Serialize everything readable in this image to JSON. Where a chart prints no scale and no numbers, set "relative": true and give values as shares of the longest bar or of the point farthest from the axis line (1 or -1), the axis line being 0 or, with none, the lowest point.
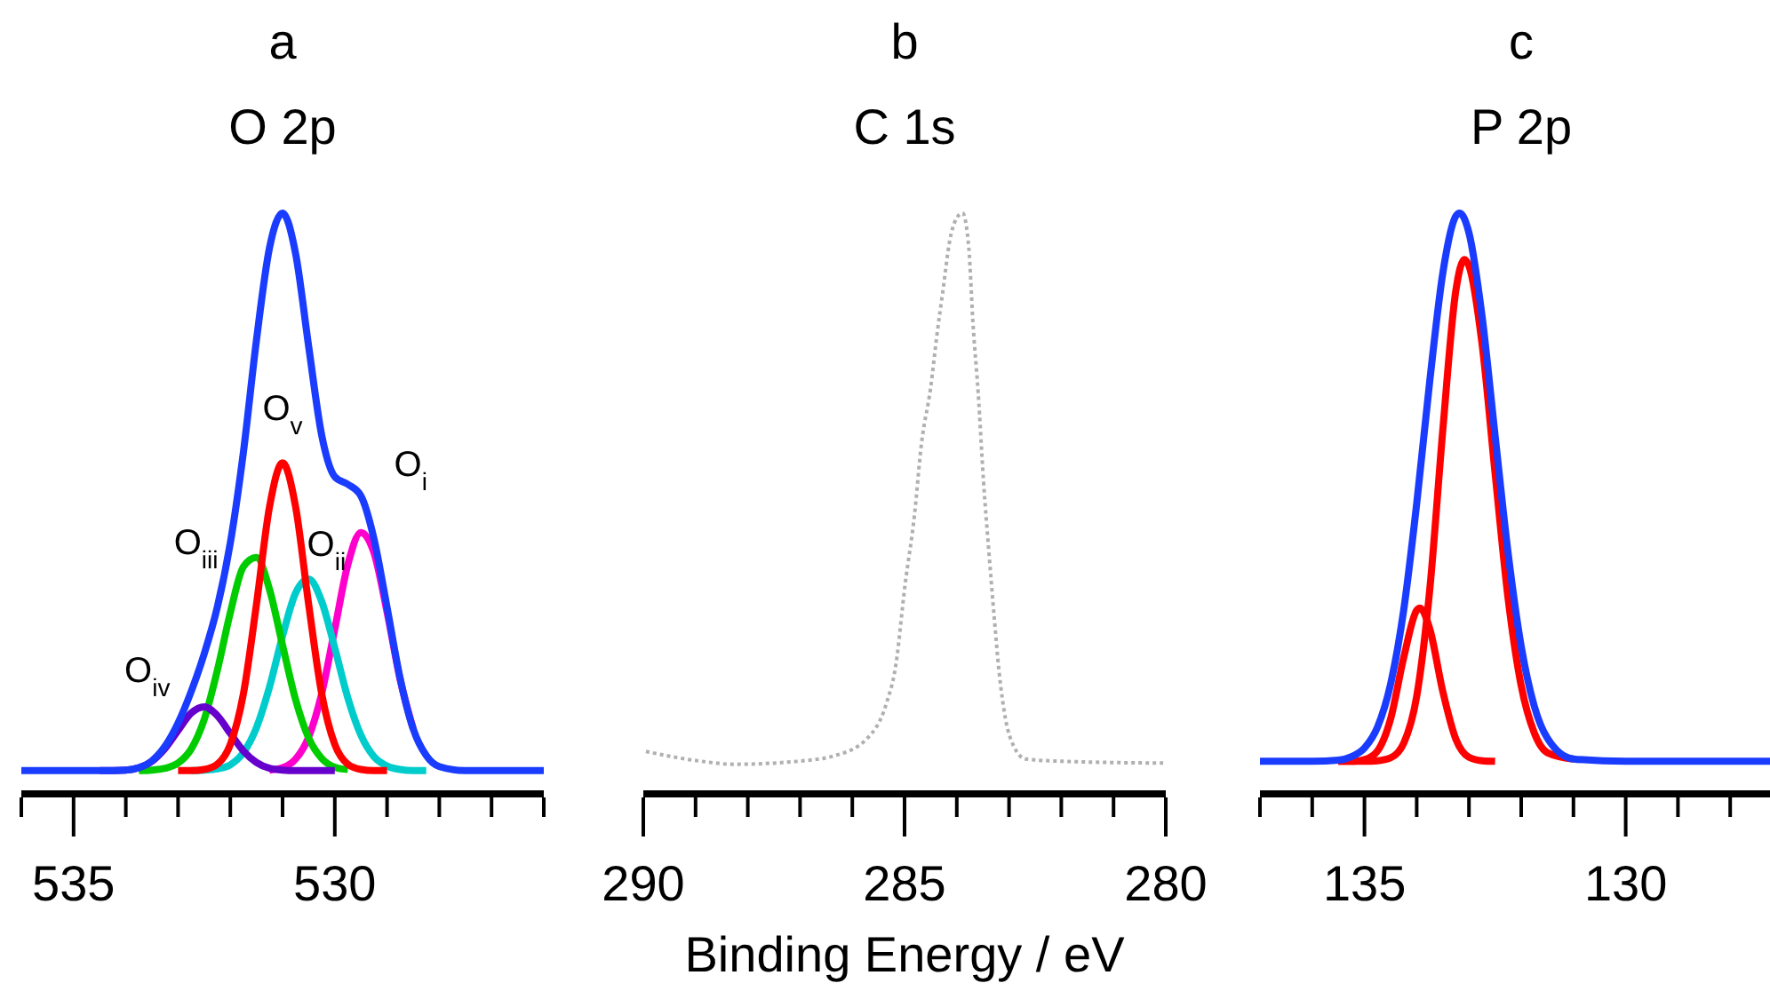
{
  "chart_data": [
    {
      "type": "line",
      "title": "a",
      "subtitle": "O 2p",
      "relative": true,
      "tick_labels": "x",
      "xlim": [
        536,
        526
      ],
      "xticks": [
        {
          "value": 536,
          "label": null
        },
        535,
        {
          "value": 534,
          "label": null
        },
        {
          "value": 533,
          "label": null
        },
        {
          "value": 532,
          "label": null
        },
        {
          "value": 531,
          "label": null
        },
        530,
        {
          "value": 529,
          "label": null
        },
        {
          "value": 528,
          "label": null
        },
        {
          "value": 527,
          "label": null
        },
        {
          "value": 526,
          "label": null
        }
      ],
      "x": [
        536,
        535,
        534.5,
        534,
        533.75,
        533.5,
        533.25,
        533,
        532.75,
        532.5,
        532.25,
        532,
        531.75,
        531.5,
        531.25,
        531,
        530.75,
        530.5,
        530.25,
        530,
        529.75,
        529.5,
        529.25,
        529,
        528.75,
        528.5,
        528.25,
        528,
        527.5,
        527,
        526
      ],
      "series": [
        {
          "name": "O$_{i}$",
          "color": "#ff00cc",
          "values": [
            null,
            null,
            null,
            null,
            null,
            null,
            null,
            null,
            null,
            null,
            null,
            null,
            null,
            null,
            0.041,
            0.045,
            0.06,
            0.098,
            0.173,
            0.284,
            0.395,
            0.45,
            0.415,
            0.313,
            0.197,
            0.112,
            null,
            null,
            null,
            null,
            null
          ]
        },
        {
          "name": "O$_{ii}$",
          "color": "#00cccc",
          "values": [
            null,
            null,
            null,
            null,
            null,
            null,
            null,
            null,
            0.04,
            0.041,
            0.043,
            0.05,
            0.071,
            0.114,
            0.184,
            0.272,
            0.346,
            0.37,
            0.331,
            0.251,
            0.165,
            0.101,
            0.064,
            0.048,
            0.042,
            0.04,
            0.04,
            null,
            null,
            null,
            null
          ]
        },
        {
          "name": "O$_{iii}$",
          "color": "#00cc00",
          "values": [
            null,
            null,
            null,
            null,
            0.04,
            0.041,
            0.044,
            0.053,
            0.077,
            0.128,
            0.212,
            0.312,
            0.391,
            0.407,
            0.352,
            0.256,
            0.162,
            0.096,
            0.061,
            0.046,
            0.042,
            null,
            null,
            null,
            null,
            null,
            null,
            null,
            null,
            null,
            null
          ]
        },
        {
          "name": "O$_{iv}$",
          "color": "#6600cc",
          "values": [
            null,
            null,
            0.04,
            0.041,
            0.045,
            0.056,
            0.078,
            0.109,
            0.139,
            0.15,
            0.135,
            0.104,
            0.074,
            0.054,
            0.044,
            0.041,
            0.04,
            0.04,
            0.04,
            0.04,
            null,
            null,
            null,
            null,
            null,
            null,
            null,
            null,
            null,
            null,
            null
          ]
        },
        {
          "name": "O$_{v}$",
          "color": "#ff0000",
          "values": [
            null,
            null,
            null,
            null,
            null,
            null,
            null,
            0.04,
            0.04,
            0.042,
            0.051,
            0.085,
            0.172,
            0.326,
            0.494,
            0.57,
            0.494,
            0.326,
            0.172,
            0.085,
            0.051,
            0.042,
            0.04,
            0.04,
            null,
            null,
            null,
            null,
            null,
            null,
            null
          ]
        },
        {
          "color": "#1a3cff",
          "values": [
            0.04,
            0.04,
            0.04,
            0.041,
            0.045,
            0.057,
            0.082,
            0.122,
            0.176,
            0.241,
            0.321,
            0.432,
            0.588,
            0.781,
            0.94,
            1,
            0.93,
            0.77,
            0.617,
            0.546,
            0.533,
            0.513,
            0.439,
            0.321,
            0.199,
            0.112,
            0.066,
            0.047,
            0.04,
            0.04,
            0.04
          ]
        }
      ]
    },
    {
      "type": "line",
      "title": "b",
      "subtitle": "C 1s",
      "xlabel": "Binding Energy / eV",
      "relative": true,
      "tick_labels": "x",
      "xlim": [
        290,
        280
      ],
      "xticks": [
        290,
        {
          "value": 289,
          "label": null
        },
        {
          "value": 288,
          "label": null
        },
        {
          "value": 287,
          "label": null
        },
        {
          "value": 286,
          "label": null
        },
        285,
        {
          "value": 284,
          "label": null
        },
        {
          "value": 283,
          "label": null
        },
        {
          "value": 282,
          "label": null
        },
        {
          "value": 281,
          "label": null
        },
        280
      ],
      "x": [
        289.95,
        288.88,
        288.27,
        287.06,
        286.33,
        285.72,
        285.35,
        285.17,
        284.99,
        284.81,
        284.68,
        284.5,
        284.38,
        284.26,
        284.14,
        284.01,
        283.89,
        283.77,
        283.69,
        283.59,
        283.49,
        283.38,
        283.28,
        283.19,
        283.07,
        282.92,
        282.68,
        281.95,
        280.05
      ],
      "series": [
        {
          "color": "#b0b0b0",
          "line_style": "dotted",
          "values": [
            0.073,
            0.056,
            0.051,
            0.056,
            0.066,
            0.095,
            0.155,
            0.22,
            0.36,
            0.48,
            0.6,
            0.7,
            0.79,
            0.87,
            0.95,
            0.99,
            1,
            0.94,
            0.81,
            0.69,
            0.54,
            0.41,
            0.3,
            0.21,
            0.13,
            0.084,
            0.06,
            0.056,
            0.053
          ]
        }
      ]
    },
    {
      "type": "line",
      "title": "c",
      "subtitle": "P 2p",
      "relative": true,
      "tick_labels": "x",
      "xlim": [
        137,
        127
      ],
      "xticks": [
        {
          "value": 137,
          "label": null
        },
        {
          "value": 136,
          "label": null
        },
        135,
        {
          "value": 134,
          "label": null
        },
        {
          "value": 133,
          "label": null
        },
        {
          "value": 132,
          "label": null
        },
        {
          "value": 131,
          "label": null
        },
        130,
        {
          "value": 129,
          "label": null
        },
        {
          "value": 128,
          "label": null
        },
        {
          "value": 127,
          "label": null
        }
      ],
      "series": [
        {
          "color": "#ff0000",
          "x": [
            135.5,
            135.25,
            135,
            134.75,
            134.5,
            134.25,
            134,
            133.75,
            133.5,
            133.25,
            133.09,
            133,
            132.75,
            132.5,
            132.25,
            132,
            131.75,
            131.5,
            131
          ],
          "values": [
            0.056,
            0.056,
            0.056,
            0.057,
            0.062,
            0.087,
            0.168,
            0.352,
            0.627,
            0.867,
            0.92,
            0.909,
            0.775,
            0.552,
            0.336,
            0.186,
            0.105,
            0.071,
            0.06
          ]
        },
        {
          "color": "#ff0000",
          "x": [
            135.5,
            135.25,
            135,
            134.75,
            134.5,
            134.25,
            134,
            133.94,
            133.75,
            133.5,
            133.25,
            133,
            132.75,
            132.5
          ],
          "values": [
            0.056,
            0.056,
            0.059,
            0.074,
            0.129,
            0.234,
            0.316,
            0.32,
            0.284,
            0.176,
            0.094,
            0.063,
            0.057,
            0.056
          ]
        },
        {
          "color": "#1a3cff",
          "x": [
            137,
            136,
            135.5,
            135.25,
            135,
            134.75,
            134.5,
            134.25,
            134,
            133.75,
            133.5,
            133.25,
            133.18,
            133,
            132.75,
            132.5,
            132.25,
            132,
            131.75,
            131.5,
            131,
            130,
            127
          ],
          "values": [
            0.056,
            0.056,
            0.058,
            0.064,
            0.079,
            0.115,
            0.189,
            0.316,
            0.5,
            0.711,
            0.897,
            0.995,
            1,
            0.966,
            0.823,
            0.617,
            0.414,
            0.254,
            0.151,
            0.096,
            0.06,
            0.056,
            0.056
          ]
        }
      ]
    }
  ]
}
